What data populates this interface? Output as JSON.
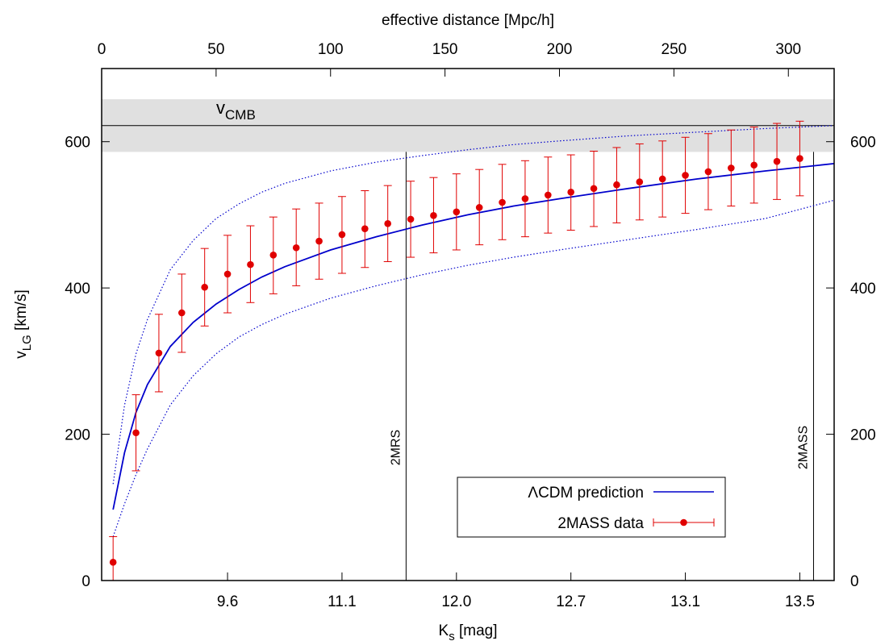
{
  "chart_data": {
    "type": "line",
    "xlabel_base": "K",
    "xlabel_sub": "s",
    "xlabel_unit": " [mag]",
    "ylabel_base": "v",
    "ylabel_sub": "LG",
    "ylabel_unit": " [km/s]",
    "x2label": "effective distance [Mpc/h]",
    "x2ticks": [
      "0",
      "50",
      "100",
      "150",
      "200",
      "250",
      "300"
    ],
    "x2tick_values": [
      0,
      50,
      100,
      150,
      200,
      250,
      300
    ],
    "x2lim": [
      0,
      320
    ],
    "ylim": [
      0,
      700
    ],
    "yticks": [
      "0",
      "200",
      "400",
      "600"
    ],
    "ytick_values": [
      0,
      200,
      400,
      600
    ],
    "xticks_bottom": [
      "9.6",
      "11.1",
      "12.0",
      "12.7",
      "13.1",
      "13.5"
    ],
    "xticks_bottom_at_distance": [
      55,
      105,
      155,
      205,
      255,
      305
    ],
    "cmb": {
      "label_base": "v",
      "label_sub": "CMB",
      "value": 622,
      "band": [
        586,
        658
      ]
    },
    "vlines": [
      {
        "label": "2MRS",
        "distance": 133
      },
      {
        "label": "2MASS",
        "distance": 311
      }
    ],
    "legend": {
      "position": "bottom-center",
      "lcdm_label": "ΛCDM prediction",
      "data_label": "2MASS data"
    },
    "series": [
      {
        "name": "ΛCDM prediction",
        "style": "solid",
        "x": [
          5,
          10,
          15,
          20,
          30,
          40,
          50,
          60,
          70,
          80,
          100,
          120,
          140,
          160,
          180,
          200,
          230,
          260,
          290,
          320
        ],
        "y": [
          97,
          175,
          230,
          268,
          320,
          353,
          378,
          398,
          415,
          429,
          452,
          470,
          486,
          500,
          512,
          522,
          536,
          549,
          560,
          570
        ]
      },
      {
        "name": "upper",
        "style": "dotted",
        "x": [
          5,
          10,
          15,
          20,
          30,
          40,
          50,
          60,
          70,
          80,
          100,
          120,
          140,
          160,
          180,
          200,
          230,
          260,
          290,
          320
        ],
        "y": [
          132,
          240,
          310,
          357,
          425,
          465,
          495,
          515,
          531,
          543,
          560,
          572,
          581,
          589,
          596,
          601,
          608,
          613,
          618,
          622
        ]
      },
      {
        "name": "lower",
        "style": "dotted",
        "x": [
          5,
          10,
          15,
          20,
          30,
          40,
          50,
          60,
          70,
          80,
          100,
          120,
          140,
          160,
          180,
          200,
          230,
          260,
          290,
          320
        ],
        "y": [
          60,
          105,
          145,
          180,
          240,
          280,
          310,
          333,
          350,
          364,
          386,
          403,
          418,
          431,
          442,
          452,
          466,
          480,
          495,
          520
        ]
      },
      {
        "name": "2MASS data",
        "style": "points",
        "x": [
          5,
          15,
          25,
          35,
          45,
          55,
          65,
          75,
          85,
          95,
          105,
          115,
          125,
          135,
          145,
          155,
          165,
          175,
          185,
          195,
          205,
          215,
          225,
          235,
          245,
          255,
          265,
          275,
          285,
          295,
          305
        ],
        "y": [
          25,
          202,
          311,
          366,
          401,
          419,
          432,
          445,
          455,
          464,
          473,
          481,
          488,
          494,
          499,
          504,
          510,
          517,
          522,
          527,
          531,
          536,
          541,
          545,
          549,
          554,
          559,
          564,
          568,
          573,
          577
        ],
        "err_low": [
          0,
          150,
          258,
          312,
          348,
          366,
          380,
          392,
          403,
          412,
          420,
          428,
          436,
          442,
          448,
          452,
          459,
          466,
          470,
          475,
          479,
          484,
          489,
          493,
          497,
          502,
          507,
          512,
          516,
          521,
          526
        ],
        "err_high": [
          60,
          254,
          364,
          419,
          454,
          472,
          485,
          497,
          508,
          516,
          525,
          533,
          540,
          546,
          551,
          556,
          562,
          569,
          574,
          579,
          582,
          587,
          592,
          597,
          601,
          606,
          611,
          616,
          620,
          625,
          628
        ]
      }
    ]
  }
}
